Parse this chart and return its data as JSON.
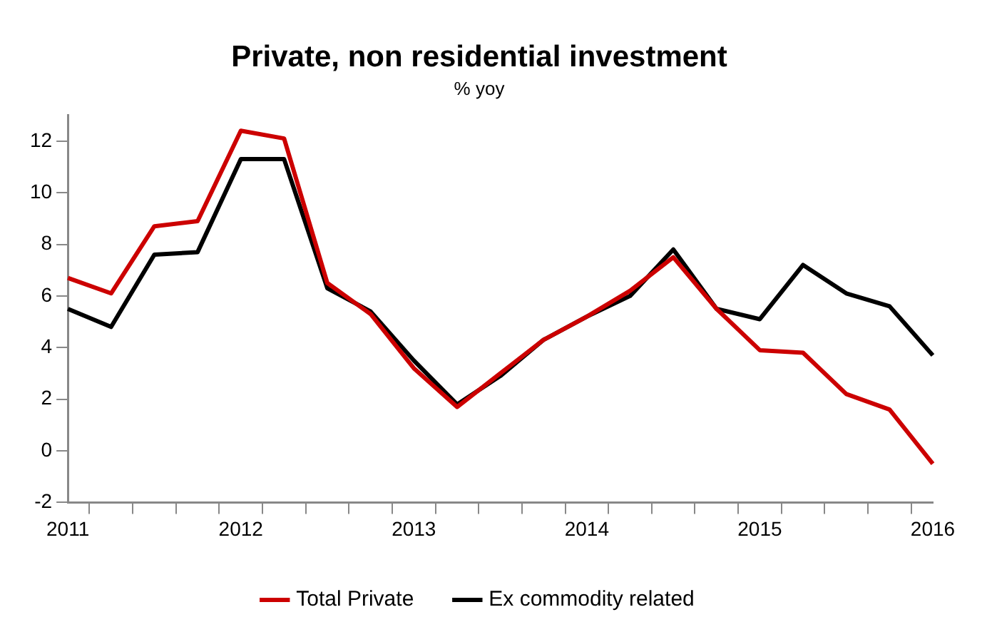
{
  "chart_data": {
    "type": "line",
    "title": "Private, non residential investment",
    "subtitle": "% yoy",
    "categories": [
      "2011",
      null,
      null,
      null,
      "2012",
      null,
      null,
      null,
      "2013",
      null,
      null,
      null,
      "2014",
      null,
      null,
      null,
      "2015",
      null,
      null,
      null,
      "2016"
    ],
    "series": [
      {
        "name": "Total Private",
        "color": "#cc0000",
        "values": [
          6.7,
          6.1,
          8.7,
          8.9,
          12.4,
          12.1,
          6.5,
          5.3,
          3.2,
          1.7,
          3.0,
          4.3,
          5.2,
          6.2,
          7.5,
          5.5,
          3.9,
          3.8,
          2.2,
          1.6,
          -0.5
        ]
      },
      {
        "name": "Ex commodity related",
        "color": "#000000",
        "values": [
          5.5,
          4.8,
          7.6,
          7.7,
          11.3,
          11.3,
          6.3,
          5.4,
          3.5,
          1.8,
          2.9,
          4.3,
          5.2,
          6.0,
          7.8,
          5.5,
          5.1,
          7.2,
          6.1,
          5.6,
          3.7
        ]
      }
    ],
    "ylim": [
      -2,
      13
    ],
    "yticks": [
      -2,
      0,
      2,
      4,
      6,
      8,
      10,
      12
    ],
    "grid": false,
    "legend": "bottom",
    "marker": "none",
    "line_style": "solid"
  }
}
